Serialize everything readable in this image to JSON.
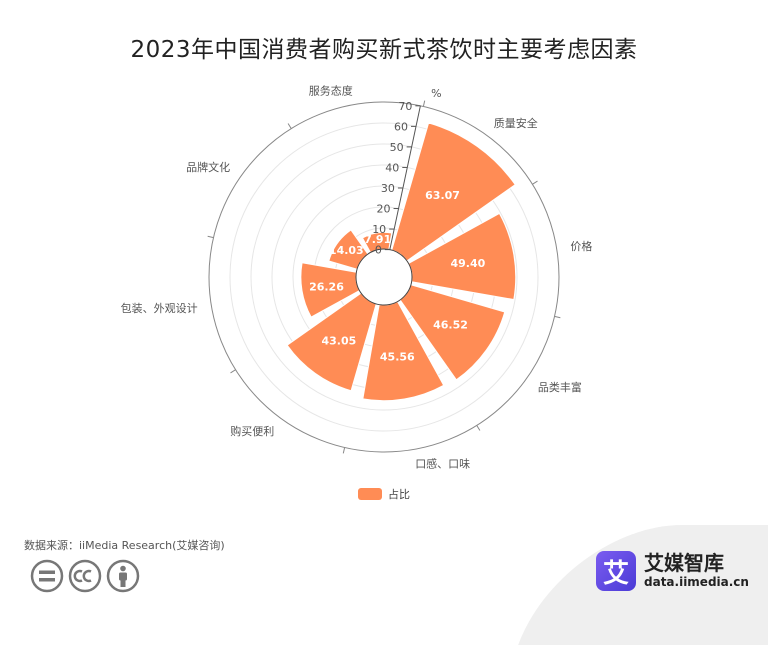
{
  "title": "2023年中国消费者购买新式茶饮时主要考虑因素",
  "source": "数据来源：iiMedia Research(艾媒咨询)",
  "brand": {
    "logo_char": "艾",
    "name": "艾媒智库",
    "url": "data.iimedia.cn"
  },
  "cc_icons": [
    "equals-icon",
    "cc-icon",
    "person-icon"
  ],
  "colors": {
    "bar": "#ff8c55",
    "bar_stroke": "#ffffff",
    "grid": "#e6e6e6",
    "axis": "#999999",
    "text": "#666666"
  },
  "chart_data": {
    "type": "polar-bar",
    "unit": "%",
    "categories": [
      "质量安全",
      "价格",
      "品类丰富",
      "口感、口味",
      "购买便利",
      "包装、外观设计",
      "品牌文化",
      "服务态度"
    ],
    "series": [
      {
        "name": "占比",
        "values": [
          63.07,
          49.4,
          46.52,
          45.56,
          43.05,
          26.26,
          14.03,
          7.91
        ]
      }
    ],
    "radial_ticks": [
      0,
      10,
      20,
      30,
      40,
      50,
      60,
      70
    ],
    "rlim": [
      0,
      70
    ],
    "legend_position": "bottom-center"
  }
}
